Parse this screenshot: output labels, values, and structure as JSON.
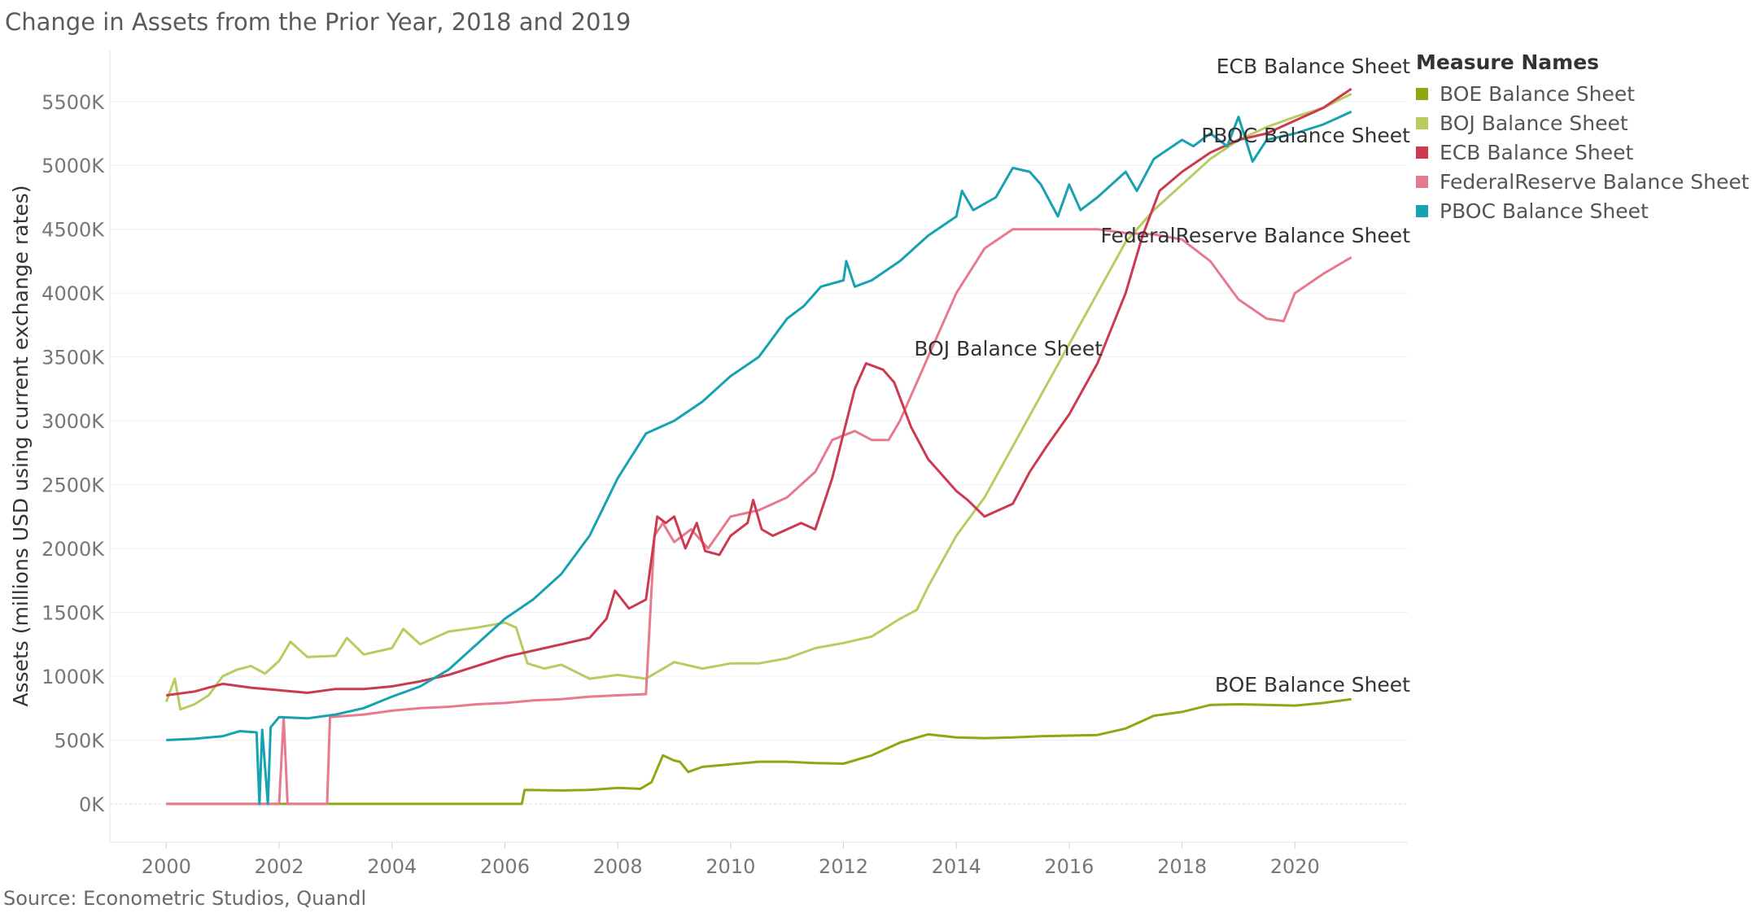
{
  "title": "Change in Assets from the Prior Year, 2018 and 2019",
  "source": "Source: Econometric Studios, Quandl",
  "legend_title": "Measure Names",
  "chart_data": {
    "type": "line",
    "title": "Change in Assets from the Prior Year, 2018 and 2019",
    "xlabel": "",
    "ylabel": "Assets (millions USD using current exchange rates)",
    "xlim": [
      1999,
      2022
    ],
    "ylim": [
      -300,
      5900
    ],
    "xticks": [
      2000,
      2002,
      2004,
      2006,
      2008,
      2010,
      2012,
      2014,
      2016,
      2018,
      2020
    ],
    "yticks": [
      0,
      500,
      1000,
      1500,
      2000,
      2500,
      3000,
      3500,
      4000,
      4500,
      5000,
      5500
    ],
    "ytick_labels": [
      "0K",
      "500K",
      "1000K",
      "1500K",
      "2000K",
      "2500K",
      "3000K",
      "3500K",
      "4000K",
      "4500K",
      "5000K",
      "5500K"
    ],
    "grid": "horizontal",
    "legend": "right",
    "series": [
      {
        "name": "BOE Balance Sheet",
        "color": "#8ea812",
        "end_label": "BOE Balance Sheet",
        "points": [
          [
            2000,
            0
          ],
          [
            2006.3,
            0
          ],
          [
            2006.35,
            110
          ],
          [
            2007,
            105
          ],
          [
            2007.5,
            110
          ],
          [
            2008,
            125
          ],
          [
            2008.4,
            118
          ],
          [
            2008.6,
            170
          ],
          [
            2008.8,
            380
          ],
          [
            2009,
            340
          ],
          [
            2009.1,
            330
          ],
          [
            2009.25,
            250
          ],
          [
            2009.5,
            290
          ],
          [
            2010,
            310
          ],
          [
            2010.5,
            330
          ],
          [
            2011,
            330
          ],
          [
            2011.5,
            320
          ],
          [
            2012,
            315
          ],
          [
            2012.5,
            380
          ],
          [
            2013,
            480
          ],
          [
            2013.5,
            545
          ],
          [
            2014,
            520
          ],
          [
            2014.5,
            515
          ],
          [
            2015,
            520
          ],
          [
            2015.5,
            530
          ],
          [
            2016,
            535
          ],
          [
            2016.5,
            540
          ],
          [
            2017,
            590
          ],
          [
            2017.5,
            690
          ],
          [
            2018,
            720
          ],
          [
            2018.5,
            775
          ],
          [
            2019,
            780
          ],
          [
            2019.5,
            775
          ],
          [
            2020,
            770
          ],
          [
            2020.5,
            790
          ],
          [
            2021,
            820
          ]
        ]
      },
      {
        "name": "BOJ Balance Sheet",
        "color": "#b8cc62",
        "end_label": "BOJ Balance Sheet",
        "points": [
          [
            2000,
            800
          ],
          [
            2000.15,
            980
          ],
          [
            2000.25,
            740
          ],
          [
            2000.5,
            780
          ],
          [
            2000.75,
            850
          ],
          [
            2001,
            1000
          ],
          [
            2001.25,
            1050
          ],
          [
            2001.5,
            1080
          ],
          [
            2001.75,
            1020
          ],
          [
            2002,
            1120
          ],
          [
            2002.2,
            1270
          ],
          [
            2002.5,
            1150
          ],
          [
            2003,
            1160
          ],
          [
            2003.2,
            1300
          ],
          [
            2003.5,
            1170
          ],
          [
            2004,
            1220
          ],
          [
            2004.2,
            1370
          ],
          [
            2004.5,
            1250
          ],
          [
            2005,
            1350
          ],
          [
            2005.5,
            1380
          ],
          [
            2006,
            1420
          ],
          [
            2006.2,
            1380
          ],
          [
            2006.4,
            1100
          ],
          [
            2006.7,
            1060
          ],
          [
            2007,
            1090
          ],
          [
            2007.5,
            980
          ],
          [
            2008,
            1010
          ],
          [
            2008.5,
            980
          ],
          [
            2009,
            1110
          ],
          [
            2009.5,
            1060
          ],
          [
            2010,
            1100
          ],
          [
            2010.5,
            1100
          ],
          [
            2011,
            1140
          ],
          [
            2011.5,
            1220
          ],
          [
            2012,
            1260
          ],
          [
            2012.5,
            1310
          ],
          [
            2013,
            1450
          ],
          [
            2013.3,
            1520
          ],
          [
            2013.5,
            1700
          ],
          [
            2014,
            2100
          ],
          [
            2014.5,
            2400
          ],
          [
            2015,
            2800
          ],
          [
            2015.5,
            3200
          ],
          [
            2016,
            3600
          ],
          [
            2016.5,
            4000
          ],
          [
            2017,
            4400
          ],
          [
            2017.5,
            4650
          ],
          [
            2018,
            4850
          ],
          [
            2018.5,
            5050
          ],
          [
            2019,
            5200
          ],
          [
            2019.5,
            5300
          ],
          [
            2020,
            5380
          ],
          [
            2020.5,
            5450
          ],
          [
            2021,
            5560
          ]
        ]
      },
      {
        "name": "ECB Balance Sheet",
        "color": "#cc3a50",
        "end_label": "ECB Balance Sheet",
        "points": [
          [
            2000,
            850
          ],
          [
            2000.5,
            880
          ],
          [
            2001,
            940
          ],
          [
            2001.5,
            910
          ],
          [
            2002,
            890
          ],
          [
            2002.5,
            870
          ],
          [
            2003,
            900
          ],
          [
            2003.5,
            900
          ],
          [
            2004,
            920
          ],
          [
            2004.5,
            960
          ],
          [
            2005,
            1010
          ],
          [
            2005.5,
            1080
          ],
          [
            2006,
            1150
          ],
          [
            2006.5,
            1200
          ],
          [
            2007,
            1250
          ],
          [
            2007.5,
            1300
          ],
          [
            2007.8,
            1450
          ],
          [
            2007.95,
            1670
          ],
          [
            2008.2,
            1530
          ],
          [
            2008.5,
            1600
          ],
          [
            2008.7,
            2250
          ],
          [
            2008.85,
            2200
          ],
          [
            2009,
            2250
          ],
          [
            2009.2,
            2000
          ],
          [
            2009.4,
            2200
          ],
          [
            2009.55,
            1980
          ],
          [
            2009.8,
            1950
          ],
          [
            2010,
            2100
          ],
          [
            2010.3,
            2200
          ],
          [
            2010.4,
            2380
          ],
          [
            2010.55,
            2150
          ],
          [
            2010.75,
            2100
          ],
          [
            2011,
            2150
          ],
          [
            2011.25,
            2200
          ],
          [
            2011.5,
            2150
          ],
          [
            2011.8,
            2550
          ],
          [
            2012,
            2900
          ],
          [
            2012.2,
            3250
          ],
          [
            2012.4,
            3450
          ],
          [
            2012.7,
            3400
          ],
          [
            2012.9,
            3300
          ],
          [
            2013.2,
            2950
          ],
          [
            2013.5,
            2700
          ],
          [
            2014,
            2450
          ],
          [
            2014.2,
            2380
          ],
          [
            2014.5,
            2250
          ],
          [
            2015,
            2350
          ],
          [
            2015.3,
            2600
          ],
          [
            2015.6,
            2800
          ],
          [
            2016,
            3050
          ],
          [
            2016.5,
            3450
          ],
          [
            2017,
            4000
          ],
          [
            2017.3,
            4450
          ],
          [
            2017.6,
            4800
          ],
          [
            2018,
            4950
          ],
          [
            2018.5,
            5100
          ],
          [
            2019,
            5200
          ],
          [
            2019.5,
            5250
          ],
          [
            2020,
            5350
          ],
          [
            2020.5,
            5450
          ],
          [
            2021,
            5600
          ]
        ]
      },
      {
        "name": "FederalReserve Balance Sheet",
        "color": "#e87a8e",
        "end_label": "FederalReserve Balance Sheet",
        "points": [
          [
            2000,
            0
          ],
          [
            2002.0,
            0
          ],
          [
            2002.08,
            680
          ],
          [
            2002.15,
            0
          ],
          [
            2002.85,
            0
          ],
          [
            2002.9,
            680
          ],
          [
            2003.5,
            700
          ],
          [
            2004,
            730
          ],
          [
            2004.5,
            750
          ],
          [
            2005,
            760
          ],
          [
            2005.5,
            780
          ],
          [
            2006,
            790
          ],
          [
            2006.5,
            810
          ],
          [
            2007,
            820
          ],
          [
            2007.5,
            840
          ],
          [
            2008,
            850
          ],
          [
            2008.5,
            860
          ],
          [
            2008.65,
            2100
          ],
          [
            2008.8,
            2200
          ],
          [
            2009,
            2050
          ],
          [
            2009.3,
            2150
          ],
          [
            2009.6,
            2000
          ],
          [
            2010,
            2250
          ],
          [
            2010.5,
            2300
          ],
          [
            2011,
            2400
          ],
          [
            2011.5,
            2600
          ],
          [
            2011.8,
            2850
          ],
          [
            2012.2,
            2920
          ],
          [
            2012.5,
            2850
          ],
          [
            2012.8,
            2850
          ],
          [
            2013,
            3000
          ],
          [
            2013.3,
            3300
          ],
          [
            2013.5,
            3500
          ],
          [
            2014,
            4000
          ],
          [
            2014.5,
            4350
          ],
          [
            2015,
            4500
          ],
          [
            2015.5,
            4500
          ],
          [
            2016,
            4500
          ],
          [
            2016.5,
            4500
          ],
          [
            2017,
            4470
          ],
          [
            2017.5,
            4460
          ],
          [
            2018,
            4420
          ],
          [
            2018.5,
            4250
          ],
          [
            2019,
            3950
          ],
          [
            2019.5,
            3800
          ],
          [
            2019.8,
            3780
          ],
          [
            2020,
            4000
          ],
          [
            2020.5,
            4150
          ],
          [
            2021,
            4280
          ]
        ]
      },
      {
        "name": "PBOC Balance Sheet",
        "color": "#17a2b1",
        "end_label": "PBOC Balance Sheet",
        "points": [
          [
            2000,
            500
          ],
          [
            2000.5,
            510
          ],
          [
            2001,
            530
          ],
          [
            2001.3,
            570
          ],
          [
            2001.6,
            560
          ],
          [
            2001.65,
            0
          ],
          [
            2001.7,
            580
          ],
          [
            2001.8,
            0
          ],
          [
            2001.85,
            600
          ],
          [
            2002,
            680
          ],
          [
            2002.5,
            670
          ],
          [
            2003,
            700
          ],
          [
            2003.5,
            750
          ],
          [
            2004,
            840
          ],
          [
            2004.5,
            920
          ],
          [
            2005,
            1050
          ],
          [
            2005.5,
            1250
          ],
          [
            2006,
            1450
          ],
          [
            2006.5,
            1600
          ],
          [
            2007,
            1800
          ],
          [
            2007.5,
            2100
          ],
          [
            2008,
            2550
          ],
          [
            2008.5,
            2900
          ],
          [
            2009,
            3000
          ],
          [
            2009.5,
            3150
          ],
          [
            2010,
            3350
          ],
          [
            2010.5,
            3500
          ],
          [
            2011,
            3800
          ],
          [
            2011.3,
            3900
          ],
          [
            2011.6,
            4050
          ],
          [
            2012,
            4100
          ],
          [
            2012.05,
            4250
          ],
          [
            2012.2,
            4050
          ],
          [
            2012.5,
            4100
          ],
          [
            2013,
            4250
          ],
          [
            2013.5,
            4450
          ],
          [
            2014,
            4600
          ],
          [
            2014.1,
            4800
          ],
          [
            2014.3,
            4650
          ],
          [
            2014.7,
            4750
          ],
          [
            2015,
            4980
          ],
          [
            2015.3,
            4950
          ],
          [
            2015.5,
            4850
          ],
          [
            2015.8,
            4600
          ],
          [
            2016,
            4850
          ],
          [
            2016.2,
            4650
          ],
          [
            2016.5,
            4750
          ],
          [
            2017,
            4950
          ],
          [
            2017.2,
            4800
          ],
          [
            2017.5,
            5050
          ],
          [
            2018,
            5200
          ],
          [
            2018.2,
            5150
          ],
          [
            2018.5,
            5250
          ],
          [
            2018.8,
            5150
          ],
          [
            2019,
            5380
          ],
          [
            2019.25,
            5030
          ],
          [
            2019.5,
            5200
          ],
          [
            2020,
            5250
          ],
          [
            2020.5,
            5320
          ],
          [
            2021,
            5420
          ]
        ]
      }
    ]
  }
}
